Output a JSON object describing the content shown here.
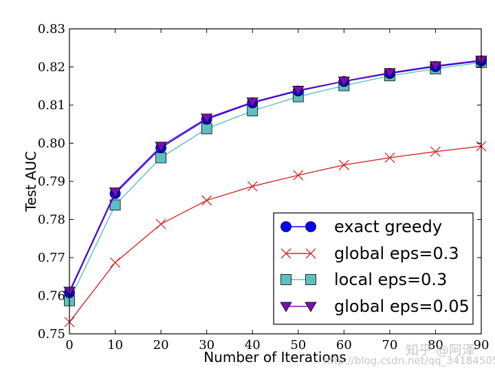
{
  "chart_data": {
    "type": "line",
    "xlabel": "Number of Iterations",
    "ylabel": "Test AUC",
    "xlim": [
      0,
      90
    ],
    "ylim": [
      0.75,
      0.83
    ],
    "x_ticks": [
      "0",
      "10",
      "20",
      "30",
      "40",
      "50",
      "60",
      "70",
      "80",
      "90"
    ],
    "y_ticks": [
      "0.75",
      "0.76",
      "0.77",
      "0.78",
      "0.79",
      "0.80",
      "0.81",
      "0.82",
      "0.83"
    ],
    "grid": false,
    "legend_position": "lower-right",
    "x": [
      0,
      10,
      20,
      30,
      40,
      50,
      60,
      70,
      80,
      90
    ],
    "series": [
      {
        "name": "exact greedy",
        "color": "#0000ff",
        "marker": "circle",
        "values": [
          0.7608,
          0.7868,
          0.7988,
          0.8063,
          0.8106,
          0.8137,
          0.8162,
          0.8183,
          0.8201,
          0.8216
        ]
      },
      {
        "name": "global eps=0.3",
        "color": "#d62728",
        "marker": "x",
        "values": [
          0.7531,
          0.7687,
          0.7788,
          0.785,
          0.7887,
          0.7916,
          0.7943,
          0.7962,
          0.7978,
          0.7992
        ]
      },
      {
        "name": "local eps=0.3",
        "color": "#5fbfbf",
        "marker": "square",
        "values": [
          0.7587,
          0.7838,
          0.7962,
          0.8038,
          0.8085,
          0.8122,
          0.8151,
          0.8177,
          0.8195,
          0.8212
        ]
      },
      {
        "name": "global eps=0.05",
        "color": "#7a0fb0",
        "marker": "triangle-down",
        "values": [
          0.7612,
          0.7872,
          0.7992,
          0.8066,
          0.8108,
          0.8139,
          0.8163,
          0.8185,
          0.8203,
          0.8218
        ]
      }
    ]
  },
  "watermark": {
    "site": "http://blog.csdn.net/qq_34184505",
    "cn": "知乎 @阿泽"
  }
}
